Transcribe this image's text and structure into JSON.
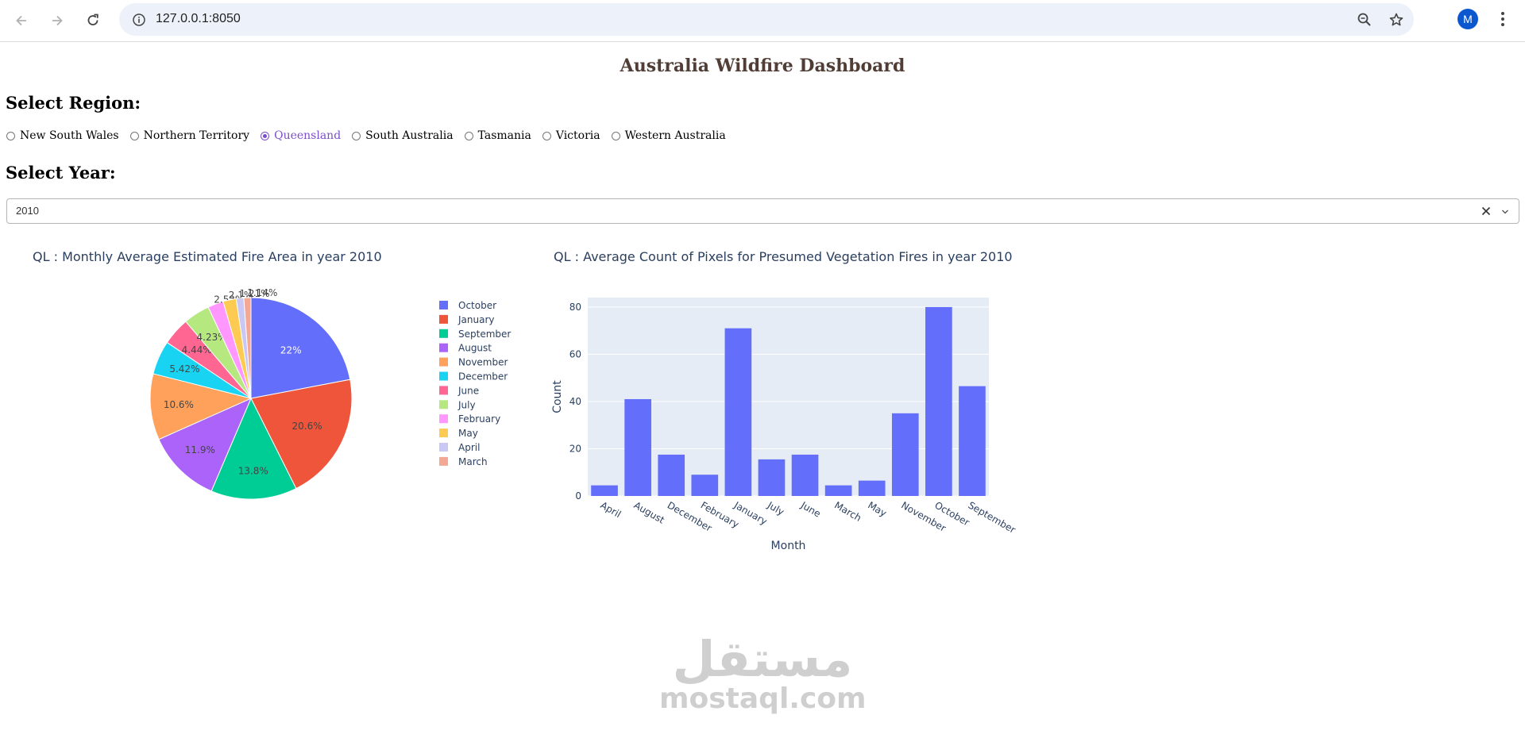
{
  "browser": {
    "url": "127.0.0.1:8050",
    "avatar_letter": "M"
  },
  "page": {
    "title": "Australia Wildfire Dashboard",
    "region_label": "Select Region:",
    "year_label": "Select Year:",
    "regions": [
      {
        "label": "New South Wales",
        "selected": false
      },
      {
        "label": "Northern Territory",
        "selected": false
      },
      {
        "label": "Queensland",
        "selected": true
      },
      {
        "label": "South Australia",
        "selected": false
      },
      {
        "label": "Tasmania",
        "selected": false
      },
      {
        "label": "Victoria",
        "selected": false
      },
      {
        "label": "Western Australia",
        "selected": false
      }
    ],
    "selected_year": "2010"
  },
  "chart_data": [
    {
      "type": "pie",
      "title": "QL : Monthly Average Estimated Fire Area in year 2010",
      "labels": [
        "October",
        "January",
        "September",
        "August",
        "November",
        "December",
        "June",
        "July",
        "February",
        "May",
        "April",
        "March"
      ],
      "values": [
        22,
        20.6,
        13.8,
        11.9,
        10.6,
        5.42,
        4.44,
        4.23,
        2.52,
        2.1,
        1.21,
        1.14
      ],
      "text_labels": [
        "22%",
        "20.6%",
        "13.8%",
        "11.9%",
        "10.6%",
        "5.42%",
        "4.44%",
        "4.23%",
        "2.52%",
        "2.1%",
        "1.21%",
        "1.14%"
      ],
      "colors": [
        "#636efa",
        "#ef553b",
        "#00cc96",
        "#ab63fa",
        "#ffa15a",
        "#19d3f3",
        "#ff6692",
        "#b6e880",
        "#ff97ff",
        "#fecb52",
        "#c9c8f5",
        "#f2a895"
      ],
      "legend": "right"
    },
    {
      "type": "bar",
      "title": "QL : Average Count of Pixels for Presumed Vegetation Fires in year 2010",
      "categories": [
        "April",
        "August",
        "December",
        "February",
        "January",
        "July",
        "June",
        "March",
        "May",
        "November",
        "October",
        "September"
      ],
      "values": [
        4.5,
        41,
        17.5,
        9,
        71,
        15.5,
        17.5,
        4.5,
        6.5,
        35,
        80,
        46.5
      ],
      "xlabel": "Month",
      "ylabel": "Count",
      "yticks": [
        "0",
        "20",
        "40",
        "60",
        "80"
      ],
      "ylim": [
        0,
        84
      ],
      "color": "#636efa",
      "grid": true
    }
  ],
  "watermark": {
    "arabic": "مستقل",
    "latin": "mostaql.com"
  }
}
